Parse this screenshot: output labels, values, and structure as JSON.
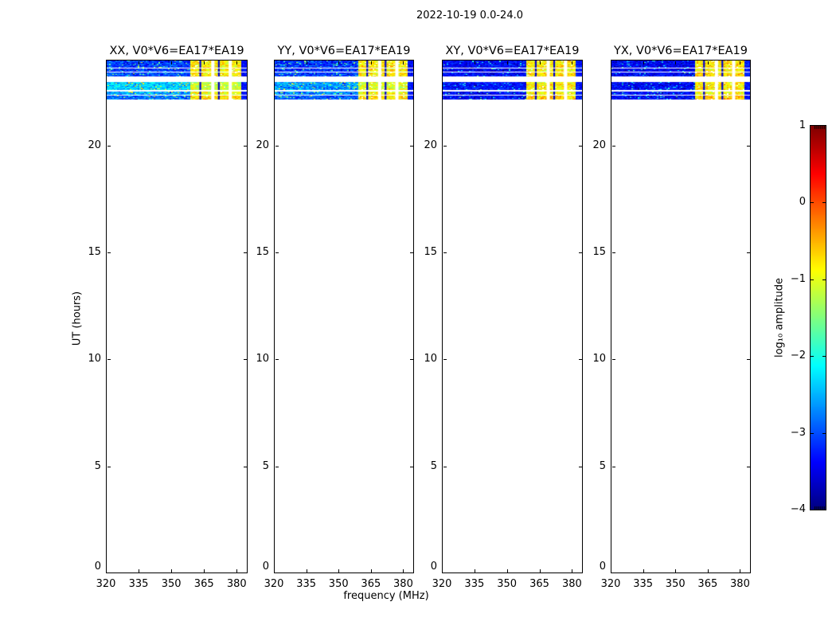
{
  "figure": {
    "title": "2022-10-19 0.0-24.0",
    "background_color": "#ffffff",
    "text_color": "#000000"
  },
  "chart_data": {
    "type": "heatmap",
    "title": "2022-10-19 0.0-24.0",
    "xlabel": "frequency (MHz)",
    "ylabel": "UT (hours)",
    "xlim": [
      320,
      385
    ],
    "ylim": [
      0,
      24
    ],
    "xticks": [
      320,
      335,
      350,
      365,
      380
    ],
    "yticks": [
      0,
      5,
      10,
      15,
      20
    ],
    "grid": false,
    "colorbar": {
      "label": "log₁₀ amplitude",
      "vmin": -4,
      "vmax": 1,
      "ticks": [
        1,
        0,
        -1,
        -2,
        -3,
        -4
      ],
      "tick_labels": [
        "1",
        "0",
        "−1",
        "−2",
        "−3",
        "−4"
      ],
      "colormap": "jet",
      "position": "right"
    },
    "time_bands": [
      {
        "hours": [
          23.66,
          24.0
        ]
      },
      {
        "hours": [
          23.46,
          23.58
        ]
      },
      {
        "hours": [
          23.25,
          23.4
        ]
      },
      {
        "hours": [
          22.6,
          22.93
        ]
      },
      {
        "hours": [
          22.38,
          22.5
        ]
      },
      {
        "hours": [
          22.16,
          22.31
        ]
      }
    ],
    "high_band": {
      "freq_range": [
        358.5,
        381.5
      ],
      "white_gaps": [
        [
          368.3,
          369.8
        ],
        [
          376.3,
          377.8
        ]
      ],
      "dark_cols": [
        [
          362.9,
          363.7
        ],
        [
          371.4,
          372.2
        ]
      ],
      "edge_level": -3.3
    },
    "panels": [
      {
        "pol": "XX",
        "title": "XX, V0*V6=EA17*EA19",
        "left_levels": [
          -3.05,
          -3.1,
          -3.0,
          -2.3,
          -2.55,
          -2.8
        ],
        "right_levels": [
          -0.85,
          -0.85,
          -0.8,
          -1.15,
          -0.9,
          -0.7
        ],
        "sigma": 0.35,
        "speckle": 0.07,
        "seed": 11
      },
      {
        "pol": "YY",
        "title": "YY, V0*V6=EA17*EA19",
        "left_levels": [
          -3.1,
          -3.15,
          -3.05,
          -2.6,
          -2.65,
          -2.9
        ],
        "right_levels": [
          -0.85,
          -0.85,
          -0.8,
          -1.05,
          -0.9,
          -0.75
        ],
        "sigma": 0.35,
        "speckle": 0.06,
        "seed": 23
      },
      {
        "pol": "XY",
        "title": "XY, V0*V6=EA17*EA19",
        "left_levels": [
          -3.35,
          -3.45,
          -3.35,
          -3.3,
          -3.3,
          -3.35
        ],
        "right_levels": [
          -0.8,
          -0.85,
          -0.7,
          -0.85,
          -0.9,
          -0.7
        ],
        "sigma": 0.3,
        "speckle": 0.05,
        "seed": 37
      },
      {
        "pol": "YX",
        "title": "YX, V0*V6=EA17*EA19",
        "left_levels": [
          -3.4,
          -3.45,
          -3.35,
          -3.35,
          -3.3,
          -3.35
        ],
        "right_levels": [
          -0.75,
          -0.85,
          -0.7,
          -0.8,
          -0.9,
          -0.65
        ],
        "sigma": 0.3,
        "speckle": 0.05,
        "seed": 51
      }
    ]
  }
}
